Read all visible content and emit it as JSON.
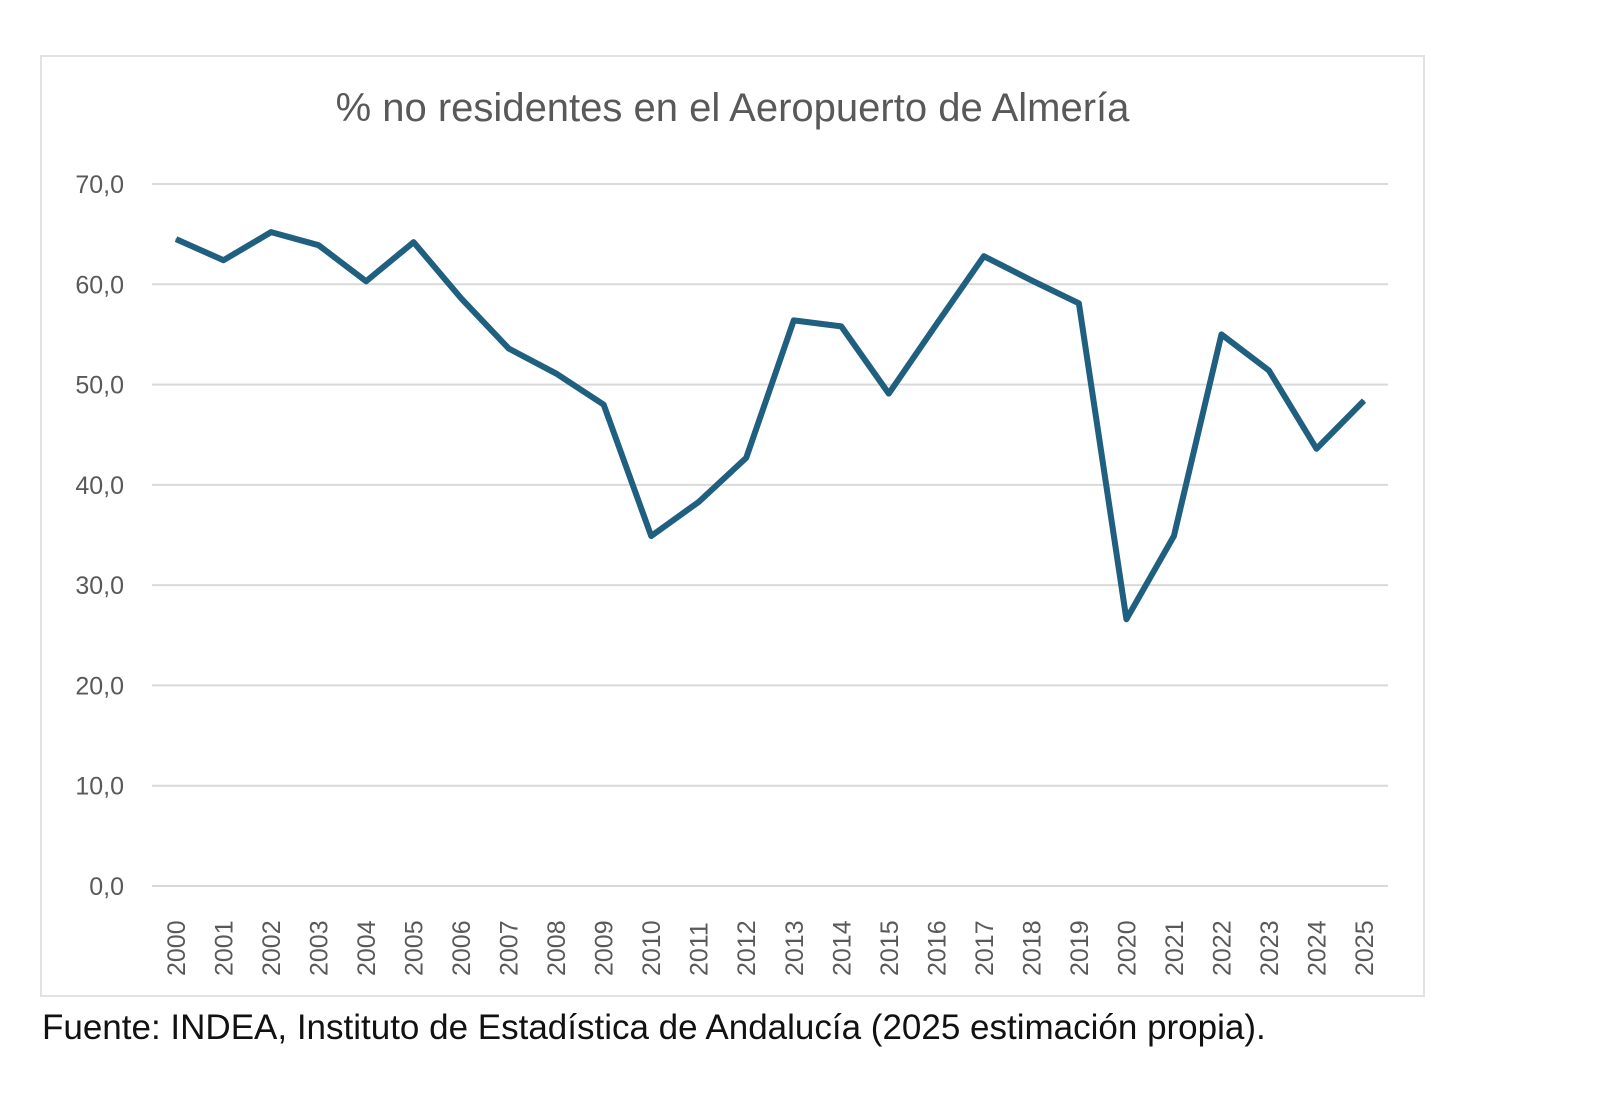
{
  "chart_data": {
    "type": "line",
    "title": "% no residentes en el Aeropuerto de Almería",
    "xlabel": "",
    "ylabel": "",
    "ylim": [
      0,
      70
    ],
    "yticks": [
      "0,0",
      "10,0",
      "20,0",
      "30,0",
      "40,0",
      "50,0",
      "60,0",
      "70,0"
    ],
    "grid": true,
    "categories": [
      "2000",
      "2001",
      "2002",
      "2003",
      "2004",
      "2005",
      "2006",
      "2007",
      "2008",
      "2009",
      "2010",
      "2011",
      "2012",
      "2013",
      "2014",
      "2015",
      "2016",
      "2017",
      "2018",
      "2019",
      "2020",
      "2021",
      "2022",
      "2023",
      "2024",
      "2025"
    ],
    "series": [
      {
        "values": [
          64.5,
          62.4,
          65.2,
          63.9,
          60.3,
          64.2,
          58.6,
          53.6,
          51.1,
          48.0,
          34.9,
          38.3,
          42.7,
          56.4,
          55.8,
          49.1,
          56.0,
          62.8,
          60.4,
          58.1,
          26.6,
          34.9,
          55.0,
          51.4,
          43.6,
          48.4
        ],
        "color": "#1f5f7f"
      }
    ]
  },
  "caption": "Fuente: INDEA, Instituto de Estadística de Andalucía (2025 estimación propia)."
}
